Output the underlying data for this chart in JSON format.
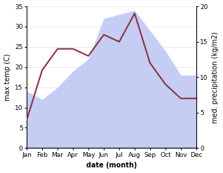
{
  "months": [
    "Jan",
    "Feb",
    "Mar",
    "Apr",
    "May",
    "Jun",
    "Jul",
    "Aug",
    "Sep",
    "Oct",
    "Nov",
    "Dec"
  ],
  "month_positions": [
    0,
    1,
    2,
    3,
    4,
    5,
    6,
    7,
    8,
    9,
    10,
    11
  ],
  "max_temp": [
    14,
    12,
    15,
    19,
    22,
    32,
    33,
    34,
    29,
    24,
    18,
    18
  ],
  "med_precip": [
    4,
    11,
    14,
    14,
    13,
    16,
    15,
    19,
    12,
    9,
    7,
    7
  ],
  "temp_fill_color": "#c5cdf5",
  "precip_color": "#8b3040",
  "temp_ylim": [
    0,
    35
  ],
  "precip_ylim": [
    0,
    20
  ],
  "temp_yticks": [
    0,
    5,
    10,
    15,
    20,
    25,
    30,
    35
  ],
  "precip_yticks": [
    0,
    5,
    10,
    15,
    20
  ],
  "xlabel": "date (month)",
  "ylabel_left": "max temp (C)",
  "ylabel_right": "med. precipitation (kg/m2)",
  "bg_color": "#ffffff",
  "label_fontsize": 7,
  "tick_fontsize": 6.5
}
